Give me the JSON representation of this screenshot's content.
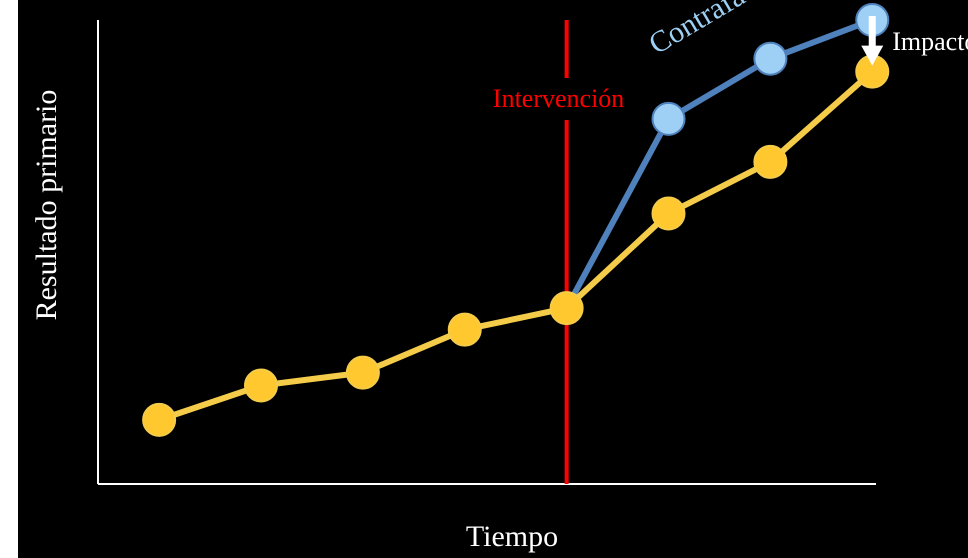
{
  "chart_data": {
    "type": "line",
    "xlabel": "Tiempo",
    "ylabel": "Resultado primario",
    "x": [
      1,
      2,
      3,
      4,
      5,
      6,
      7,
      8
    ],
    "xlim": [
      0.4,
      8.4
    ],
    "ylim": [
      0,
      100
    ],
    "series": [
      {
        "name": "",
        "color": "#f5cc4a",
        "marker_color": "#ffc82e",
        "x": [
          1,
          2,
          3,
          4,
          5,
          6,
          7,
          8
        ],
        "values": [
          7,
          15,
          18,
          28,
          33,
          55,
          67,
          88
        ]
      },
      {
        "name": "Contrafactual",
        "color": "#4f81bd",
        "marker_color": "#9ed0f5",
        "x": [
          5,
          6,
          7,
          8
        ],
        "values": [
          33,
          77,
          91,
          100
        ]
      }
    ],
    "annotations": {
      "intervention": {
        "label": "Intervención",
        "x": 5,
        "color": "#ff0000"
      },
      "counterfactual_label": {
        "text": "Contrafactual",
        "color": "#9ed0f5"
      },
      "impact": {
        "label": "Impacto",
        "x": 8,
        "from": 100,
        "to": 88,
        "color": "#ffffff"
      }
    },
    "grid": false,
    "legend": "none"
  }
}
